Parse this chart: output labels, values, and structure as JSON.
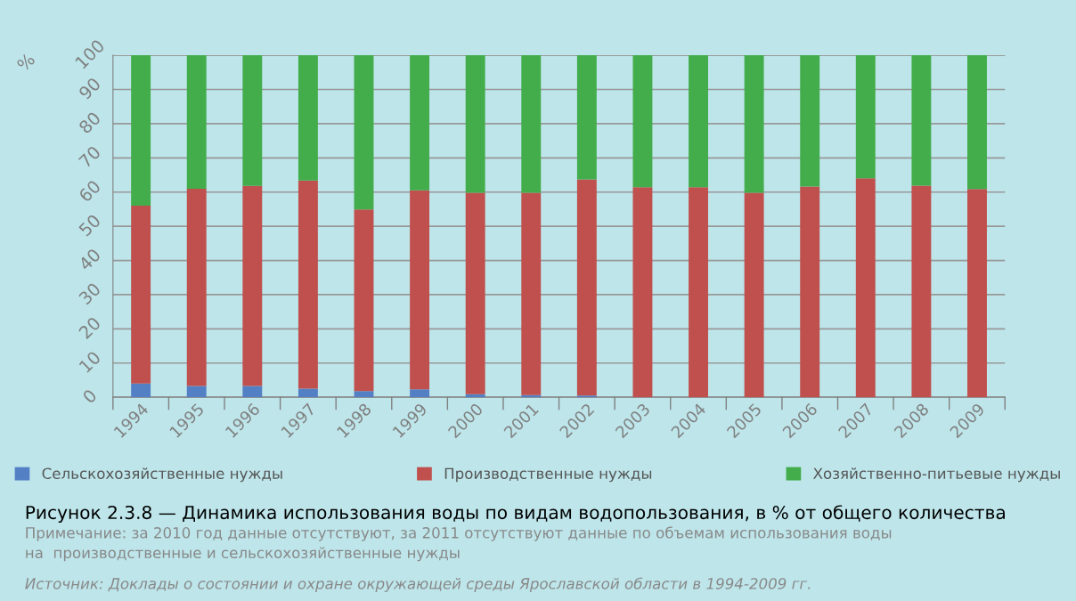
{
  "chart_data": {
    "type": "bar",
    "stacked": true,
    "title": "Рисунок 2.3.8 — Динамика использования воды по видам водопользования, в % от общего количества",
    "ylabel": "%",
    "categories": [
      "1994",
      "1995",
      "1996",
      "1997",
      "1998",
      "1999",
      "2000",
      "2001",
      "2002",
      "2003",
      "2004",
      "2005",
      "2006",
      "2007",
      "2008",
      "2009"
    ],
    "series": [
      {
        "name": "Сельскохозяйственные нужды",
        "color": "#5380c4",
        "values": [
          4.0,
          3.3,
          3.3,
          2.5,
          1.8,
          2.3,
          0.9,
          0.6,
          0.5,
          0,
          0,
          0,
          0,
          0,
          0,
          0
        ]
      },
      {
        "name": "Производственные нужды",
        "color": "#c0504d",
        "values": [
          52.0,
          57.7,
          58.5,
          60.9,
          53.1,
          58.2,
          58.9,
          59.2,
          63.2,
          61.4,
          61.4,
          59.8,
          61.6,
          64.0,
          61.9,
          60.9
        ]
      },
      {
        "name": "Хозяйственно-питьевые нужды",
        "color": "#42ad4a",
        "values": [
          44.0,
          39.0,
          38.2,
          36.6,
          45.1,
          39.5,
          40.2,
          40.2,
          36.3,
          38.6,
          38.6,
          40.2,
          38.4,
          36.0,
          38.1,
          39.1
        ]
      }
    ],
    "ylim": [
      0,
      100
    ],
    "yticks": [
      0,
      10,
      20,
      30,
      40,
      50,
      60,
      70,
      80,
      90,
      100
    ],
    "grid": "y",
    "legend": "bottom",
    "annotations": [
      "Примечание: за 2010 год данные отсутствуют, за 2011 отсутствуют данные по объемам использования воды\nна  производственные и сельскохозяйственные нужды",
      "Источник: Доклады о состоянии и охране окружающей среды Ярославской области в 1994-2009 гг."
    ]
  }
}
